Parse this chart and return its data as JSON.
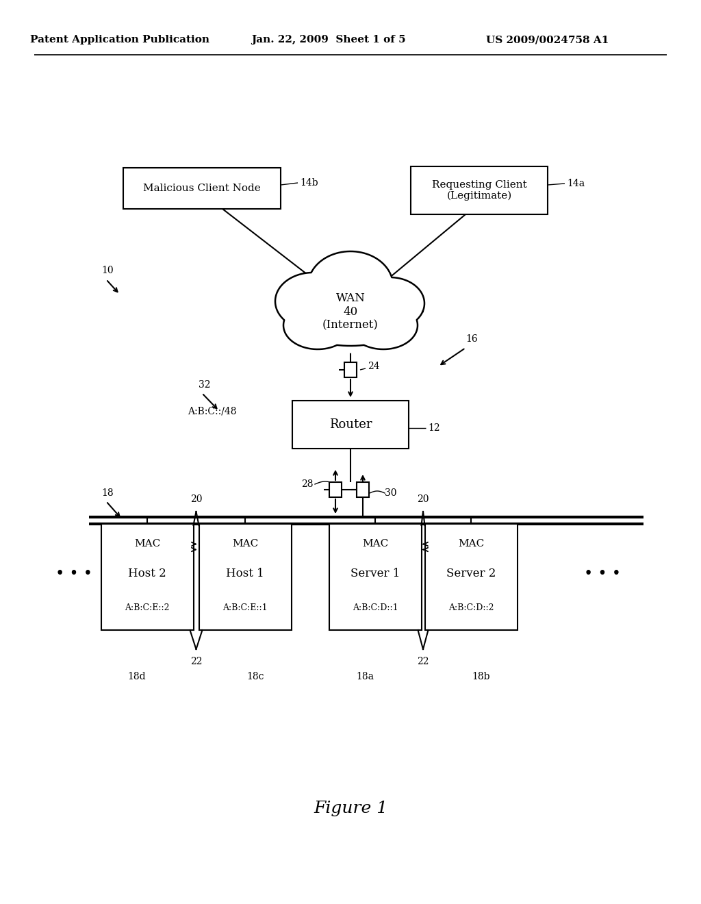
{
  "bg_color": "#ffffff",
  "header_left": "Patent Application Publication",
  "header_mid": "Jan. 22, 2009  Sheet 1 of 5",
  "header_right": "US 2009/0024758 A1",
  "figure_caption": "Figure 1",
  "wan_label": "WAN\n40\n(Internet)",
  "router_label": "Router",
  "malicious_label": "Malicious Client Node",
  "requesting_label": "Requesting Client\n(Legitimate)"
}
